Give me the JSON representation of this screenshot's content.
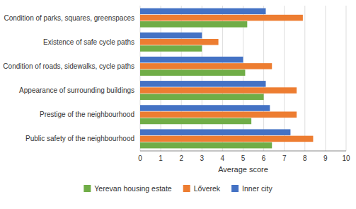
{
  "chart_data": {
    "type": "bar",
    "orientation": "horizontal",
    "categories": [
      "Condition of parks, squares, greenspaces",
      "Existence of safe cycle paths",
      "Condition of roads, sidewalks, cycle paths",
      "Appearance of surrounding buildings",
      "Prestige of the neighbourhood",
      "Public safety of the neighbourhood"
    ],
    "series": [
      {
        "name": "Yerevan housing estate",
        "color": "#70AD47",
        "values": [
          5.2,
          3.0,
          5.1,
          6.0,
          5.4,
          6.4
        ]
      },
      {
        "name": "Lőverek",
        "color": "#ED7D31",
        "values": [
          7.9,
          3.8,
          6.4,
          7.6,
          7.6,
          8.4
        ]
      },
      {
        "name": "Inner city",
        "color": "#4472C4",
        "values": [
          6.1,
          3.0,
          5.0,
          6.1,
          6.3,
          7.3
        ]
      }
    ],
    "xlabel": "Average score",
    "xlim": [
      0,
      10
    ],
    "xticks": [
      0,
      1,
      2,
      3,
      4,
      5,
      6,
      7,
      8,
      9,
      10
    ],
    "grid": true,
    "legend": "bottom"
  }
}
